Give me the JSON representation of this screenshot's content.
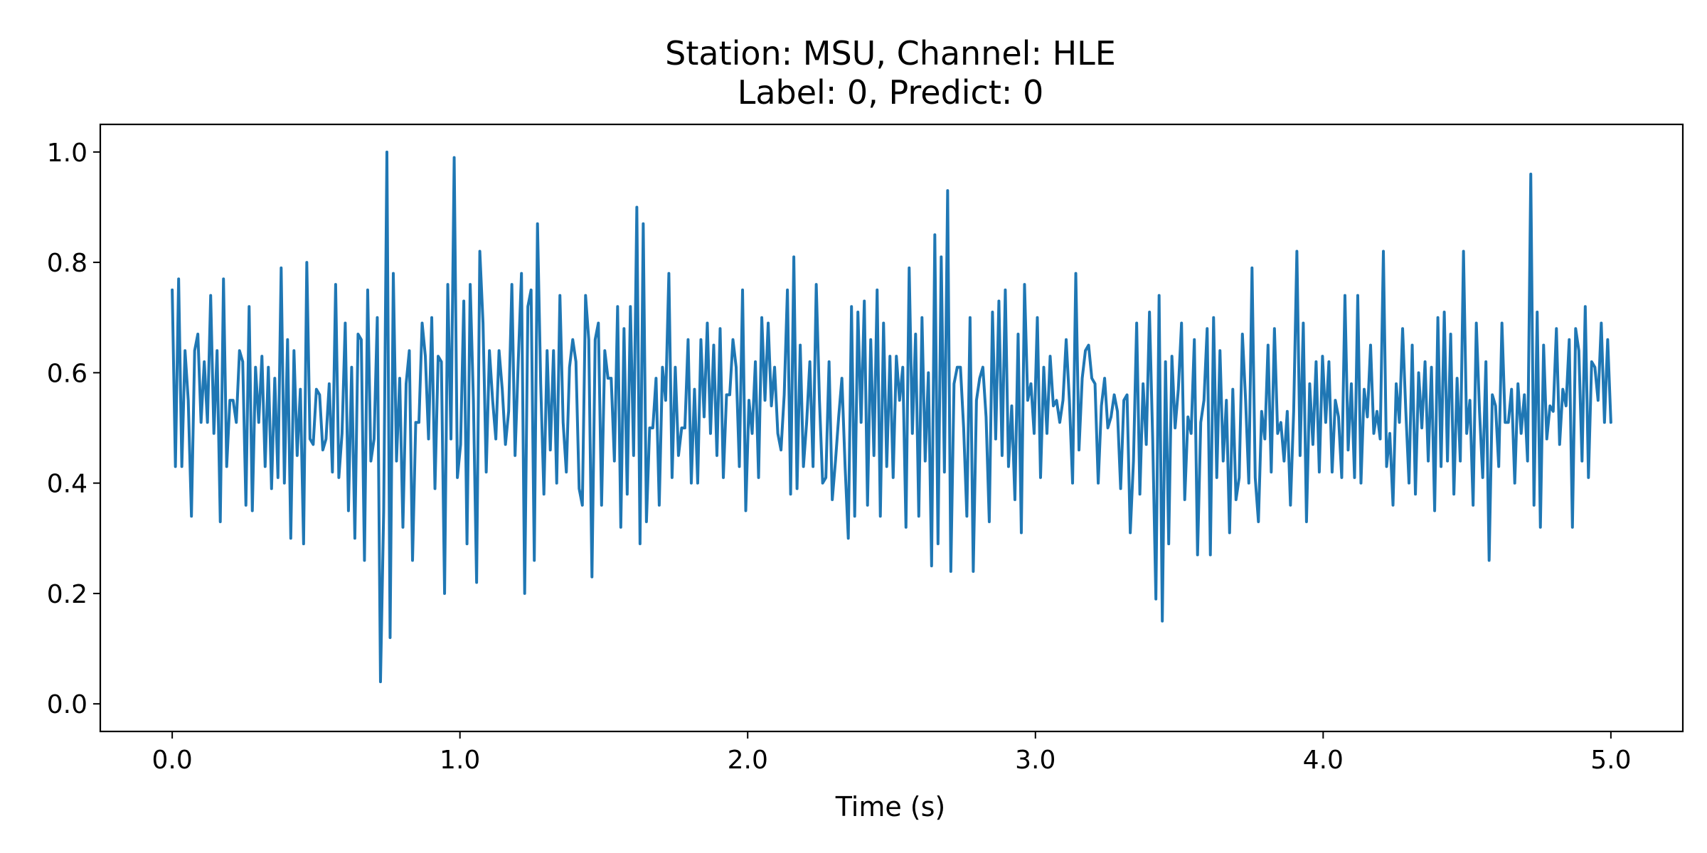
{
  "chart_data": {
    "type": "line",
    "title_line1": "Station: MSU, Channel: HLE",
    "title_line2": "Label: 0, Predict: 0",
    "xlabel": "Time (s)",
    "ylabel": "",
    "xlim": [
      -0.25,
      5.25
    ],
    "ylim": [
      -0.05,
      1.05
    ],
    "x_ticks": [
      0.0,
      1.0,
      2.0,
      3.0,
      4.0,
      5.0
    ],
    "x_tick_labels": [
      "0.0",
      "1.0",
      "2.0",
      "3.0",
      "4.0",
      "5.0"
    ],
    "y_ticks": [
      0.0,
      0.2,
      0.4,
      0.6,
      0.8,
      1.0
    ],
    "y_tick_labels": [
      "0.0",
      "0.2",
      "0.4",
      "0.6",
      "0.8",
      "1.0"
    ],
    "grid": false,
    "legend": "none",
    "line_color": "#1f77b4",
    "x_start": 0.0,
    "x_end": 5.0,
    "series": [
      {
        "values": [
          0.75,
          0.43,
          0.77,
          0.43,
          0.64,
          0.55,
          0.34,
          0.64,
          0.67,
          0.51,
          0.62,
          0.51,
          0.74,
          0.49,
          0.64,
          0.33,
          0.77,
          0.43,
          0.55,
          0.55,
          0.51,
          0.64,
          0.62,
          0.36,
          0.72,
          0.35,
          0.61,
          0.51,
          0.63,
          0.43,
          0.61,
          0.39,
          0.59,
          0.41,
          0.79,
          0.4,
          0.66,
          0.3,
          0.64,
          0.45,
          0.57,
          0.29,
          0.8,
          0.48,
          0.47,
          0.57,
          0.56,
          0.46,
          0.48,
          0.58,
          0.42,
          0.76,
          0.41,
          0.49,
          0.69,
          0.35,
          0.61,
          0.3,
          0.67,
          0.66,
          0.26,
          0.75,
          0.44,
          0.48,
          0.7,
          0.04,
          0.35,
          1.0,
          0.12,
          0.78,
          0.44,
          0.59,
          0.32,
          0.58,
          0.64,
          0.26,
          0.51,
          0.51,
          0.69,
          0.63,
          0.48,
          0.7,
          0.39,
          0.63,
          0.62,
          0.2,
          0.76,
          0.48,
          0.99,
          0.41,
          0.47,
          0.73,
          0.29,
          0.76,
          0.55,
          0.22,
          0.82,
          0.69,
          0.42,
          0.64,
          0.55,
          0.48,
          0.64,
          0.57,
          0.47,
          0.53,
          0.76,
          0.45,
          0.62,
          0.78,
          0.2,
          0.72,
          0.75,
          0.26,
          0.87,
          0.58,
          0.38,
          0.64,
          0.46,
          0.64,
          0.4,
          0.74,
          0.51,
          0.42,
          0.61,
          0.66,
          0.62,
          0.39,
          0.36,
          0.74,
          0.66,
          0.23,
          0.66,
          0.69,
          0.36,
          0.64,
          0.59,
          0.59,
          0.44,
          0.72,
          0.32,
          0.68,
          0.38,
          0.72,
          0.45,
          0.9,
          0.29,
          0.87,
          0.33,
          0.5,
          0.5,
          0.59,
          0.36,
          0.61,
          0.55,
          0.78,
          0.41,
          0.61,
          0.45,
          0.5,
          0.5,
          0.66,
          0.4,
          0.57,
          0.4,
          0.66,
          0.52,
          0.69,
          0.49,
          0.65,
          0.45,
          0.68,
          0.41,
          0.56,
          0.56,
          0.66,
          0.61,
          0.43,
          0.75,
          0.35,
          0.55,
          0.49,
          0.62,
          0.41,
          0.7,
          0.55,
          0.69,
          0.54,
          0.61,
          0.49,
          0.46,
          0.56,
          0.75,
          0.38,
          0.81,
          0.39,
          0.65,
          0.43,
          0.51,
          0.62,
          0.43,
          0.76,
          0.55,
          0.4,
          0.41,
          0.62,
          0.37,
          0.44,
          0.52,
          0.59,
          0.43,
          0.3,
          0.72,
          0.34,
          0.71,
          0.51,
          0.73,
          0.36,
          0.66,
          0.45,
          0.75,
          0.34,
          0.69,
          0.43,
          0.63,
          0.41,
          0.63,
          0.55,
          0.61,
          0.32,
          0.79,
          0.49,
          0.67,
          0.34,
          0.7,
          0.44,
          0.6,
          0.25,
          0.85,
          0.29,
          0.81,
          0.42,
          0.93,
          0.24,
          0.58,
          0.61,
          0.61,
          0.5,
          0.34,
          0.7,
          0.24,
          0.55,
          0.59,
          0.61,
          0.52,
          0.33,
          0.71,
          0.48,
          0.73,
          0.45,
          0.75,
          0.43,
          0.54,
          0.37,
          0.67,
          0.31,
          0.76,
          0.55,
          0.58,
          0.49,
          0.7,
          0.41,
          0.61,
          0.49,
          0.63,
          0.54,
          0.55,
          0.51,
          0.55,
          0.66,
          0.55,
          0.4,
          0.78,
          0.46,
          0.59,
          0.64,
          0.65,
          0.59,
          0.58,
          0.4,
          0.54,
          0.59,
          0.5,
          0.52,
          0.56,
          0.53,
          0.39,
          0.55,
          0.56,
          0.31,
          0.44,
          0.69,
          0.38,
          0.58,
          0.47,
          0.71,
          0.48,
          0.19,
          0.74,
          0.15,
          0.62,
          0.29,
          0.63,
          0.5,
          0.57,
          0.69,
          0.37,
          0.52,
          0.49,
          0.66,
          0.27,
          0.51,
          0.55,
          0.68,
          0.27,
          0.7,
          0.41,
          0.64,
          0.44,
          0.55,
          0.31,
          0.57,
          0.37,
          0.41,
          0.67,
          0.55,
          0.4,
          0.79,
          0.41,
          0.33,
          0.53,
          0.48,
          0.65,
          0.42,
          0.68,
          0.49,
          0.51,
          0.44,
          0.53,
          0.36,
          0.53,
          0.82,
          0.45,
          0.69,
          0.33,
          0.58,
          0.47,
          0.62,
          0.42,
          0.63,
          0.51,
          0.62,
          0.42,
          0.55,
          0.52,
          0.41,
          0.74,
          0.46,
          0.58,
          0.41,
          0.74,
          0.4,
          0.57,
          0.52,
          0.65,
          0.49,
          0.53,
          0.48,
          0.82,
          0.43,
          0.49,
          0.36,
          0.58,
          0.51,
          0.68,
          0.53,
          0.4,
          0.65,
          0.38,
          0.6,
          0.5,
          0.62,
          0.44,
          0.61,
          0.35,
          0.7,
          0.43,
          0.71,
          0.44,
          0.67,
          0.38,
          0.59,
          0.44,
          0.82,
          0.49,
          0.55,
          0.36,
          0.69,
          0.53,
          0.41,
          0.62,
          0.26,
          0.56,
          0.54,
          0.43,
          0.69,
          0.51,
          0.51,
          0.57,
          0.4,
          0.58,
          0.49,
          0.56,
          0.44,
          0.96,
          0.36,
          0.71,
          0.32,
          0.65,
          0.48,
          0.54,
          0.53,
          0.68,
          0.47,
          0.57,
          0.54,
          0.66,
          0.32,
          0.68,
          0.64,
          0.44,
          0.72,
          0.41,
          0.62,
          0.61,
          0.55,
          0.69,
          0.51,
          0.66,
          0.51
        ]
      }
    ]
  }
}
